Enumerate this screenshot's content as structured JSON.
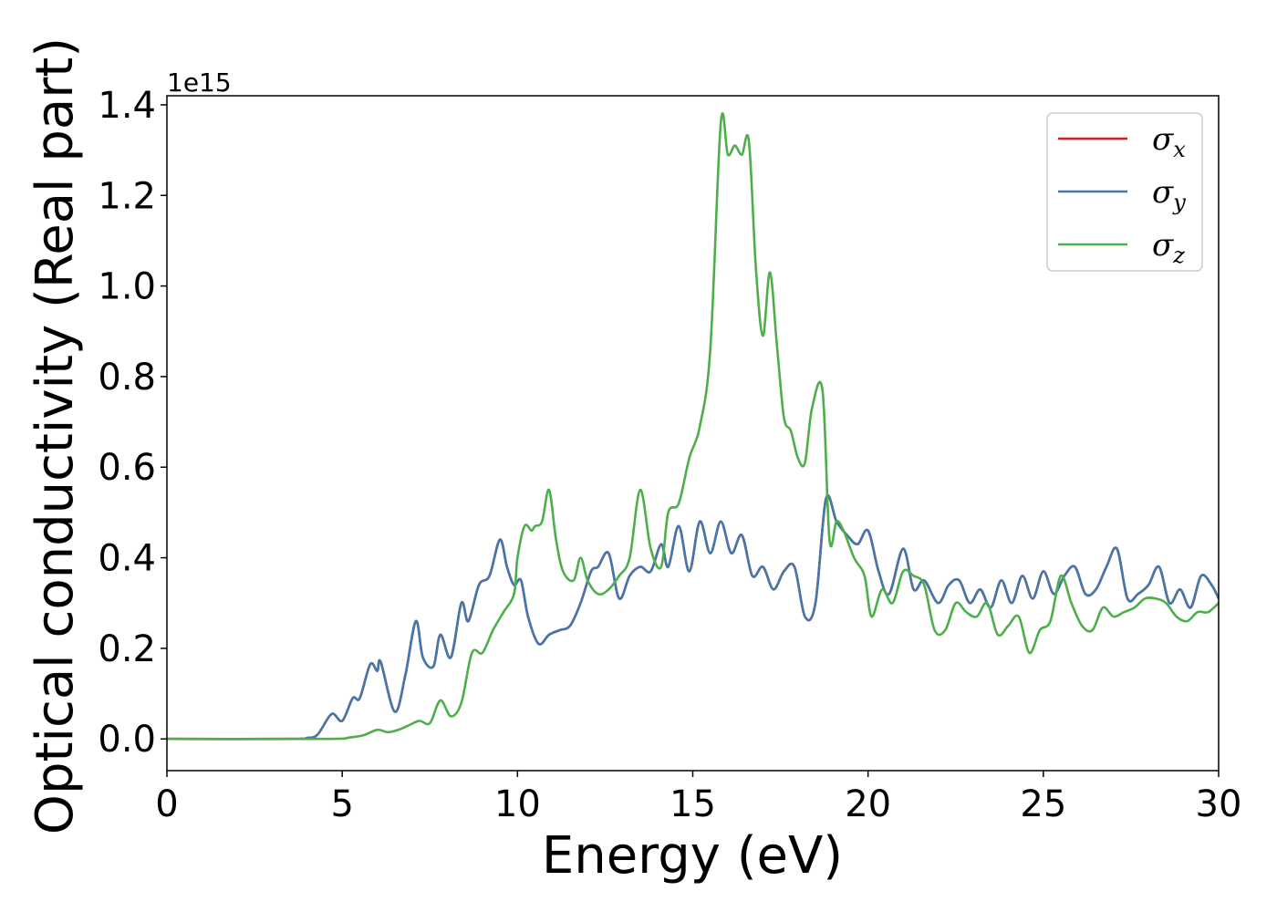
{
  "chart_data": {
    "type": "line",
    "title": "",
    "xlabel": "Energy (eV)",
    "ylabel": "Optical conductivity (Real part)",
    "y_offset_text": "1e15",
    "xlim": [
      0,
      30
    ],
    "ylim": [
      -0.07,
      1.42
    ],
    "x_ticks": [
      0,
      5,
      10,
      15,
      20,
      25,
      30
    ],
    "x_tick_labels": [
      "0",
      "5",
      "10",
      "15",
      "20",
      "25",
      "30"
    ],
    "y_ticks": [
      0.0,
      0.2,
      0.4,
      0.6,
      0.8,
      1.0,
      1.2,
      1.4
    ],
    "y_tick_labels": [
      "0.0",
      "0.2",
      "0.4",
      "0.6",
      "0.8",
      "1.0",
      "1.2",
      "1.4"
    ],
    "grid": false,
    "legend_position": "top-right",
    "series": [
      {
        "name": "σx",
        "symbol": "σ",
        "subscript": "x",
        "color": "#e41a1c",
        "x": [
          0,
          3.5,
          4.0,
          4.3,
          4.7,
          5.0,
          5.3,
          5.5,
          5.8,
          6.0,
          6.1,
          6.5,
          6.8,
          7.1,
          7.3,
          7.6,
          7.8,
          8.1,
          8.4,
          8.6,
          8.9,
          9.2,
          9.5,
          9.7,
          9.9,
          10.1,
          10.3,
          10.6,
          10.9,
          11.2,
          11.5,
          11.8,
          12.1,
          12.3,
          12.6,
          12.9,
          13.2,
          13.5,
          13.8,
          14.1,
          14.3,
          14.6,
          14.9,
          15.2,
          15.5,
          15.8,
          16.1,
          16.4,
          16.7,
          17.0,
          17.3,
          17.6,
          17.9,
          18.2,
          18.5,
          18.8,
          19.1,
          19.4,
          19.7,
          20.0,
          20.3,
          20.6,
          21.0,
          21.3,
          21.6,
          22.0,
          22.3,
          22.6,
          22.9,
          23.2,
          23.5,
          23.8,
          24.1,
          24.4,
          24.7,
          25.0,
          25.3,
          25.6,
          25.9,
          26.2,
          26.5,
          26.8,
          27.1,
          27.4,
          27.7,
          28.0,
          28.3,
          28.6,
          28.9,
          29.2,
          29.5,
          29.8,
          30.0
        ],
        "y": [
          0.0,
          0.0,
          0.002,
          0.01,
          0.055,
          0.04,
          0.09,
          0.09,
          0.165,
          0.15,
          0.17,
          0.06,
          0.14,
          0.26,
          0.18,
          0.16,
          0.23,
          0.18,
          0.3,
          0.26,
          0.34,
          0.36,
          0.44,
          0.38,
          0.34,
          0.35,
          0.27,
          0.21,
          0.23,
          0.24,
          0.25,
          0.3,
          0.37,
          0.38,
          0.41,
          0.31,
          0.36,
          0.38,
          0.37,
          0.43,
          0.38,
          0.47,
          0.37,
          0.48,
          0.41,
          0.48,
          0.41,
          0.45,
          0.36,
          0.38,
          0.33,
          0.37,
          0.38,
          0.27,
          0.3,
          0.53,
          0.48,
          0.45,
          0.43,
          0.46,
          0.37,
          0.32,
          0.42,
          0.33,
          0.35,
          0.3,
          0.34,
          0.35,
          0.3,
          0.33,
          0.29,
          0.35,
          0.3,
          0.36,
          0.31,
          0.37,
          0.32,
          0.36,
          0.38,
          0.32,
          0.33,
          0.38,
          0.42,
          0.31,
          0.32,
          0.34,
          0.38,
          0.3,
          0.33,
          0.29,
          0.36,
          0.34,
          0.31
        ]
      },
      {
        "name": "σy",
        "symbol": "σ",
        "subscript": "y",
        "color": "#4477aa",
        "x": [
          0,
          3.5,
          4.0,
          4.3,
          4.7,
          5.0,
          5.3,
          5.5,
          5.8,
          6.0,
          6.1,
          6.5,
          6.8,
          7.1,
          7.3,
          7.6,
          7.8,
          8.1,
          8.4,
          8.6,
          8.9,
          9.2,
          9.5,
          9.7,
          9.9,
          10.1,
          10.3,
          10.6,
          10.9,
          11.2,
          11.5,
          11.8,
          12.1,
          12.3,
          12.6,
          12.9,
          13.2,
          13.5,
          13.8,
          14.1,
          14.3,
          14.6,
          14.9,
          15.2,
          15.5,
          15.8,
          16.1,
          16.4,
          16.7,
          17.0,
          17.3,
          17.6,
          17.9,
          18.2,
          18.5,
          18.8,
          19.1,
          19.4,
          19.7,
          20.0,
          20.3,
          20.6,
          21.0,
          21.3,
          21.6,
          22.0,
          22.3,
          22.6,
          22.9,
          23.2,
          23.5,
          23.8,
          24.1,
          24.4,
          24.7,
          25.0,
          25.3,
          25.6,
          25.9,
          26.2,
          26.5,
          26.8,
          27.1,
          27.4,
          27.7,
          28.0,
          28.3,
          28.6,
          28.9,
          29.2,
          29.5,
          29.8,
          30.0
        ],
        "y": [
          0.0,
          0.0,
          0.002,
          0.01,
          0.055,
          0.04,
          0.09,
          0.09,
          0.165,
          0.15,
          0.17,
          0.06,
          0.14,
          0.26,
          0.18,
          0.16,
          0.23,
          0.18,
          0.3,
          0.26,
          0.34,
          0.36,
          0.44,
          0.38,
          0.34,
          0.35,
          0.27,
          0.21,
          0.23,
          0.24,
          0.25,
          0.3,
          0.37,
          0.38,
          0.41,
          0.31,
          0.36,
          0.38,
          0.37,
          0.43,
          0.38,
          0.47,
          0.37,
          0.48,
          0.41,
          0.48,
          0.41,
          0.45,
          0.36,
          0.38,
          0.33,
          0.37,
          0.38,
          0.27,
          0.3,
          0.53,
          0.48,
          0.45,
          0.43,
          0.46,
          0.37,
          0.32,
          0.42,
          0.33,
          0.35,
          0.3,
          0.34,
          0.35,
          0.3,
          0.33,
          0.29,
          0.35,
          0.3,
          0.36,
          0.31,
          0.37,
          0.32,
          0.36,
          0.38,
          0.32,
          0.33,
          0.38,
          0.42,
          0.31,
          0.32,
          0.34,
          0.38,
          0.3,
          0.33,
          0.29,
          0.36,
          0.34,
          0.31
        ]
      },
      {
        "name": "σz",
        "symbol": "σ",
        "subscript": "z",
        "color": "#4daf4a",
        "x": [
          0,
          4.5,
          5.2,
          5.6,
          6.0,
          6.3,
          6.6,
          6.9,
          7.2,
          7.5,
          7.8,
          8.1,
          8.4,
          8.7,
          9.0,
          9.3,
          9.6,
          9.9,
          10.0,
          10.2,
          10.4,
          10.5,
          10.7,
          10.9,
          11.1,
          11.3,
          11.6,
          11.8,
          12.0,
          12.3,
          12.6,
          12.9,
          13.2,
          13.5,
          13.8,
          14.1,
          14.3,
          14.6,
          14.9,
          15.2,
          15.5,
          15.8,
          16.0,
          16.2,
          16.4,
          16.6,
          16.8,
          17.0,
          17.2,
          17.4,
          17.6,
          17.8,
          18.0,
          18.2,
          18.4,
          18.7,
          18.9,
          19.1,
          19.3,
          19.6,
          19.9,
          20.1,
          20.4,
          20.7,
          21.0,
          21.3,
          21.6,
          21.9,
          22.2,
          22.5,
          22.8,
          23.1,
          23.4,
          23.7,
          24.0,
          24.3,
          24.6,
          24.9,
          25.2,
          25.5,
          25.8,
          26.1,
          26.4,
          26.7,
          27.0,
          27.3,
          27.6,
          27.9,
          28.2,
          28.5,
          28.8,
          29.1,
          29.4,
          29.7,
          30.0
        ],
        "y": [
          0.0,
          0.0,
          0.003,
          0.008,
          0.02,
          0.015,
          0.02,
          0.03,
          0.04,
          0.035,
          0.085,
          0.05,
          0.08,
          0.19,
          0.19,
          0.24,
          0.28,
          0.32,
          0.4,
          0.47,
          0.46,
          0.47,
          0.48,
          0.55,
          0.44,
          0.37,
          0.35,
          0.4,
          0.35,
          0.32,
          0.33,
          0.36,
          0.4,
          0.55,
          0.42,
          0.38,
          0.5,
          0.52,
          0.62,
          0.69,
          0.86,
          1.36,
          1.29,
          1.31,
          1.29,
          1.32,
          1.04,
          0.89,
          1.03,
          0.87,
          0.71,
          0.68,
          0.62,
          0.61,
          0.73,
          0.77,
          0.44,
          0.48,
          0.46,
          0.4,
          0.36,
          0.27,
          0.33,
          0.3,
          0.37,
          0.36,
          0.34,
          0.24,
          0.24,
          0.3,
          0.28,
          0.27,
          0.3,
          0.23,
          0.25,
          0.27,
          0.19,
          0.24,
          0.26,
          0.36,
          0.3,
          0.25,
          0.24,
          0.29,
          0.27,
          0.28,
          0.29,
          0.31,
          0.31,
          0.3,
          0.27,
          0.26,
          0.28,
          0.28,
          0.3
        ]
      }
    ]
  }
}
